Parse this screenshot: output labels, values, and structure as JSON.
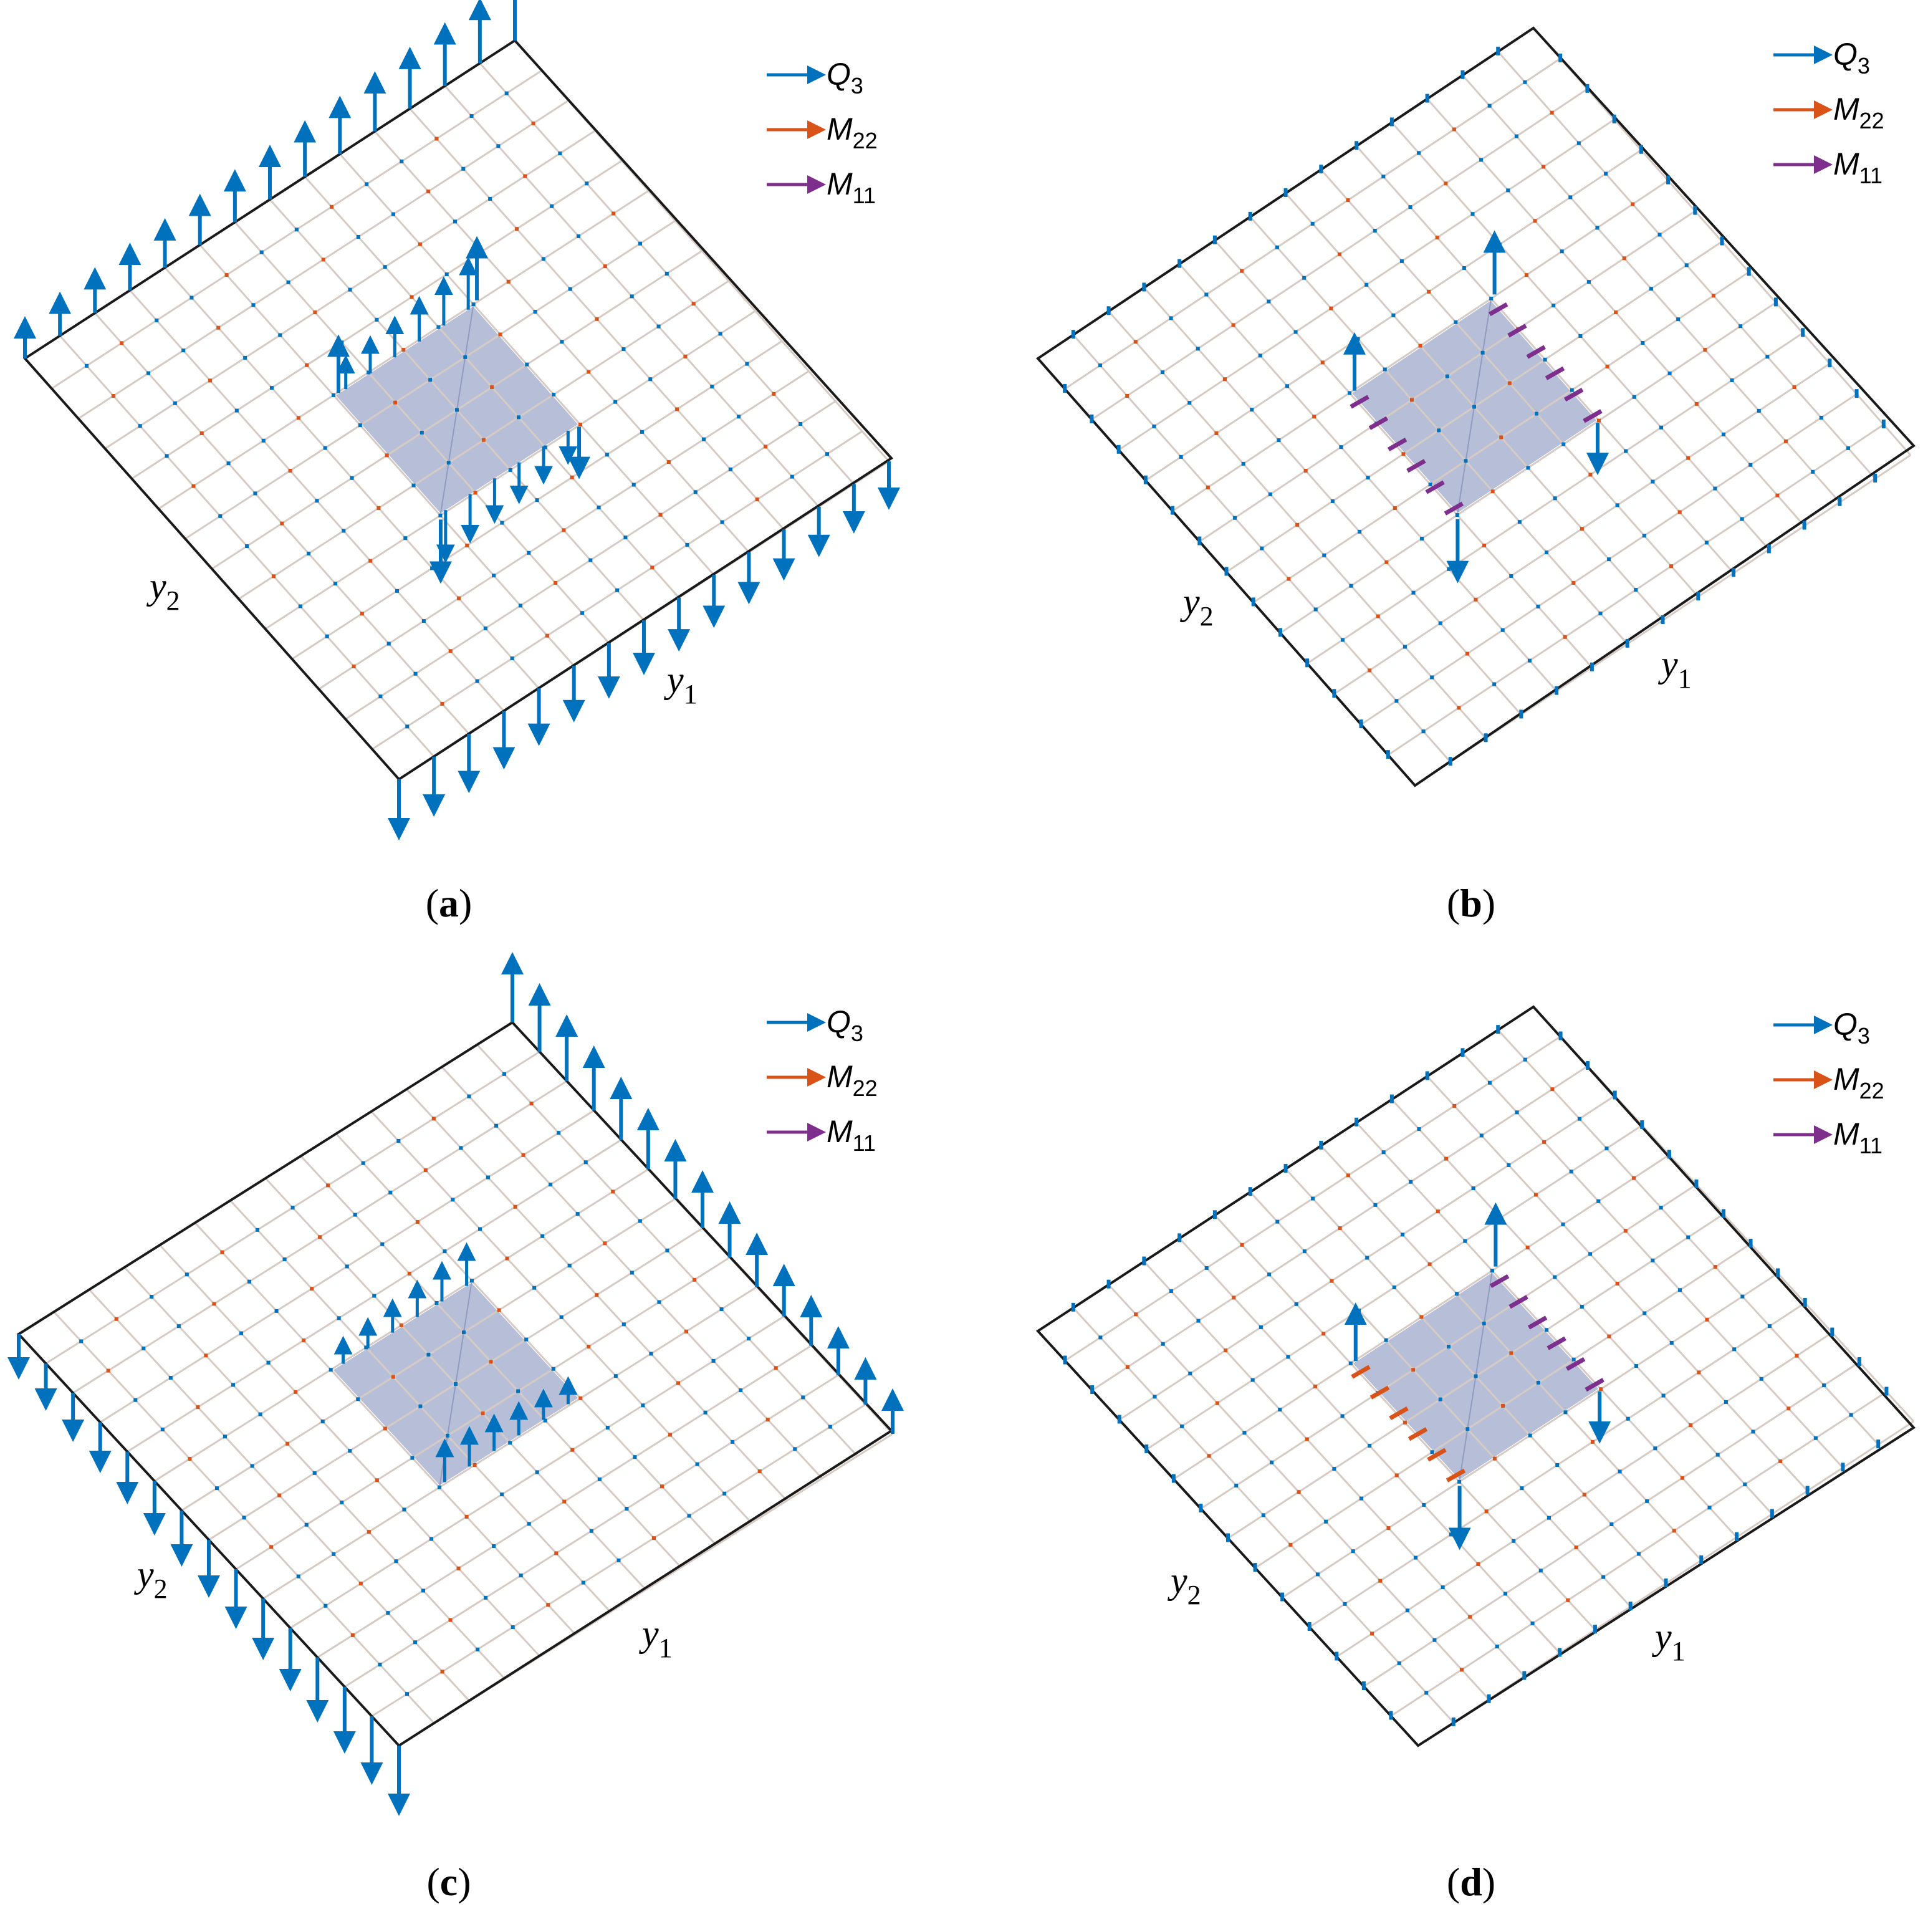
{
  "legend": [
    {
      "symbol": "Q",
      "sub": "3",
      "color": "#0072BD"
    },
    {
      "symbol": "M",
      "sub": "22",
      "color": "#D95319"
    },
    {
      "symbol": "M",
      "sub": "11",
      "color": "#7E2F8E"
    }
  ],
  "axes": {
    "y1": {
      "symbol": "y",
      "sub": "1"
    },
    "y2": {
      "symbol": "y",
      "sub": "2"
    }
  },
  "panels": [
    {
      "label": "a",
      "edge_arrows": "strong-diagonal"
    },
    {
      "label": "b",
      "edge_arrows": "small"
    },
    {
      "label": "c",
      "edge_arrows": "strong-opposite"
    },
    {
      "label": "d",
      "edge_arrows": "small-moment"
    }
  ],
  "colors": {
    "q3": "#0072BD",
    "m22": "#D95319",
    "m11": "#7E2F8E",
    "inclusion": "#A9B4D0",
    "grid": "#d6cbc4",
    "plate_edge": "#1a1a1a"
  }
}
